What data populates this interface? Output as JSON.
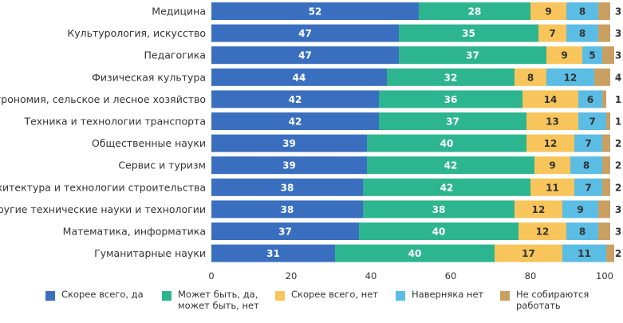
{
  "chart_data": {
    "type": "bar",
    "orientation": "horizontal",
    "stacked": true,
    "categories": [
      "Медицина",
      "Культурология, искусство",
      "Педагогика",
      "Физическая культура",
      "Агрономия, сельское и лесное хозяйство",
      "Техника и технологии транспорта",
      "Общественные науки",
      "Сервис и туризм",
      "Архитектура и технологии строительства",
      "Другие технические науки и технологии",
      "Математика, информатика",
      "Гуманитарные науки"
    ],
    "series": [
      {
        "name": "Скорее всего, да",
        "color": "#3a6fbf",
        "label_color": "#ffffff",
        "values": [
          52,
          47,
          47,
          44,
          42,
          42,
          39,
          39,
          38,
          38,
          37,
          31
        ]
      },
      {
        "name": "Может быть, да,\nможет быть, нет",
        "color": "#2db58f",
        "label_color": "#ffffff",
        "values": [
          28,
          35,
          37,
          32,
          36,
          37,
          40,
          42,
          42,
          38,
          40,
          40
        ]
      },
      {
        "name": "Скорее всего, нет",
        "color": "#f7c55b",
        "label_color": "#333333",
        "values": [
          9,
          7,
          9,
          8,
          14,
          13,
          12,
          9,
          11,
          12,
          12,
          17
        ]
      },
      {
        "name": "Наверняка нет",
        "color": "#5bbce4",
        "label_color": "#333333",
        "values": [
          8,
          8,
          5,
          12,
          6,
          7,
          7,
          8,
          7,
          9,
          8,
          11
        ]
      },
      {
        "name": "Не собираются\nработать",
        "color": "#c9a062",
        "label_color": "#333333",
        "values": [
          3,
          3,
          3,
          4,
          1,
          1,
          2,
          2,
          2,
          3,
          3,
          2
        ]
      }
    ],
    "xlim": [
      0,
      100
    ],
    "xticks": [
      0,
      20,
      40,
      60,
      80,
      100
    ],
    "title": "",
    "xlabel": "",
    "ylabel": "",
    "legend_position": "bottom"
  }
}
